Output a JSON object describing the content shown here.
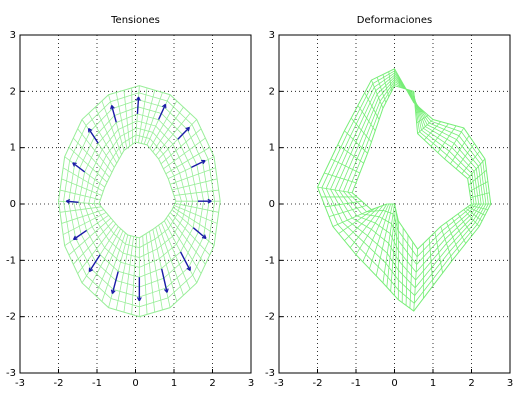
{
  "chart_data": [
    {
      "type": "quiver",
      "title": "Tensiones",
      "xlim": [
        -3,
        3
      ],
      "ylim": [
        -3,
        3
      ],
      "xticks": [
        -3,
        -2,
        -1,
        0,
        1,
        2,
        3
      ],
      "yticks": [
        -3,
        -2,
        -1,
        0,
        1,
        2,
        3
      ],
      "grid": true,
      "mesh_color": "#99ee99",
      "arrow_color": "#1a1aa8",
      "mesh": {
        "inner_x": [
          1.05,
          0.85,
          0.6,
          0.3,
          0,
          -0.3,
          -0.55,
          -0.8,
          -0.95,
          -0.7,
          -0.45,
          -0.2,
          0.1,
          0.45,
          0.75,
          0.95
        ],
        "inner_y": [
          0.05,
          0.45,
          0.8,
          1.05,
          1.1,
          0.95,
          0.65,
          0.3,
          0,
          -0.2,
          -0.4,
          -0.55,
          -0.6,
          -0.45,
          -0.3,
          -0.1
        ],
        "outer_x": [
          2.2,
          2.04,
          1.59,
          0.9,
          0.1,
          -0.7,
          -1.39,
          -1.84,
          -2.0,
          -1.84,
          -1.39,
          -0.7,
          0.1,
          0.9,
          1.59,
          2.04
        ],
        "outer_y": [
          0.05,
          0.84,
          1.5,
          1.94,
          2.1,
          1.94,
          1.5,
          0.84,
          0.05,
          -0.74,
          -1.4,
          -1.84,
          -2.0,
          -1.84,
          -1.4,
          -0.74
        ]
      },
      "arrows": {
        "x": [
          1.62,
          1.45,
          1.1,
          0.6,
          0.05,
          -0.5,
          -0.97,
          -1.32,
          -1.48,
          -1.27,
          -0.92,
          -0.45,
          0.1,
          0.68,
          1.17,
          1.5
        ],
        "y": [
          0.05,
          0.65,
          1.15,
          1.5,
          1.6,
          1.45,
          1.08,
          0.57,
          0.03,
          -0.47,
          -0.9,
          -1.2,
          -1.3,
          -1.15,
          -0.85,
          -0.42
        ],
        "u": [
          0.35,
          0.36,
          0.3,
          0.18,
          0.03,
          -0.12,
          -0.25,
          -0.31,
          -0.32,
          -0.34,
          -0.28,
          -0.15,
          0,
          0.14,
          0.25,
          0.33
        ],
        "v": [
          0,
          0.12,
          0.21,
          0.27,
          0.3,
          0.3,
          0.26,
          0.16,
          0.02,
          -0.16,
          -0.3,
          -0.39,
          -0.42,
          -0.42,
          -0.33,
          -0.19
        ]
      }
    },
    {
      "type": "mesh",
      "title": "Deformaciones",
      "xlim": [
        -3,
        3
      ],
      "ylim": [
        -3,
        3
      ],
      "xticks": [
        -3,
        -2,
        -1,
        0,
        1,
        2,
        3
      ],
      "yticks": [
        -3,
        -2,
        -1,
        0,
        1,
        2,
        3
      ],
      "grid": true,
      "mesh_color": "#77ee77",
      "mesh": {
        "inner_x": [
          2.0,
          1.9,
          1.3,
          0.6,
          0.5,
          0.0,
          -0.3,
          -0.7,
          -1.1,
          -0.6,
          -0.2,
          0,
          0.1,
          0.6,
          1.2,
          1.8
        ],
        "inner_y": [
          0.0,
          0.45,
          0.8,
          1.25,
          2.0,
          2.1,
          1.7,
          0.9,
          0.2,
          -0.1,
          0,
          0,
          -0.3,
          -0.8,
          -0.4,
          -0.1
        ],
        "outer_x": [
          2.5,
          2.35,
          1.8,
          1.0,
          0.5,
          0,
          -0.6,
          -1.3,
          -2.0,
          -1.6,
          -1.0,
          -0.3,
          0.1,
          0.5,
          1.5,
          2.2
        ],
        "outer_y": [
          0,
          0.8,
          1.35,
          1.5,
          1.8,
          2.4,
          2.2,
          1.3,
          0.3,
          -0.4,
          -0.9,
          -1.4,
          -1.7,
          -1.9,
          -1.0,
          -0.4
        ]
      }
    }
  ]
}
